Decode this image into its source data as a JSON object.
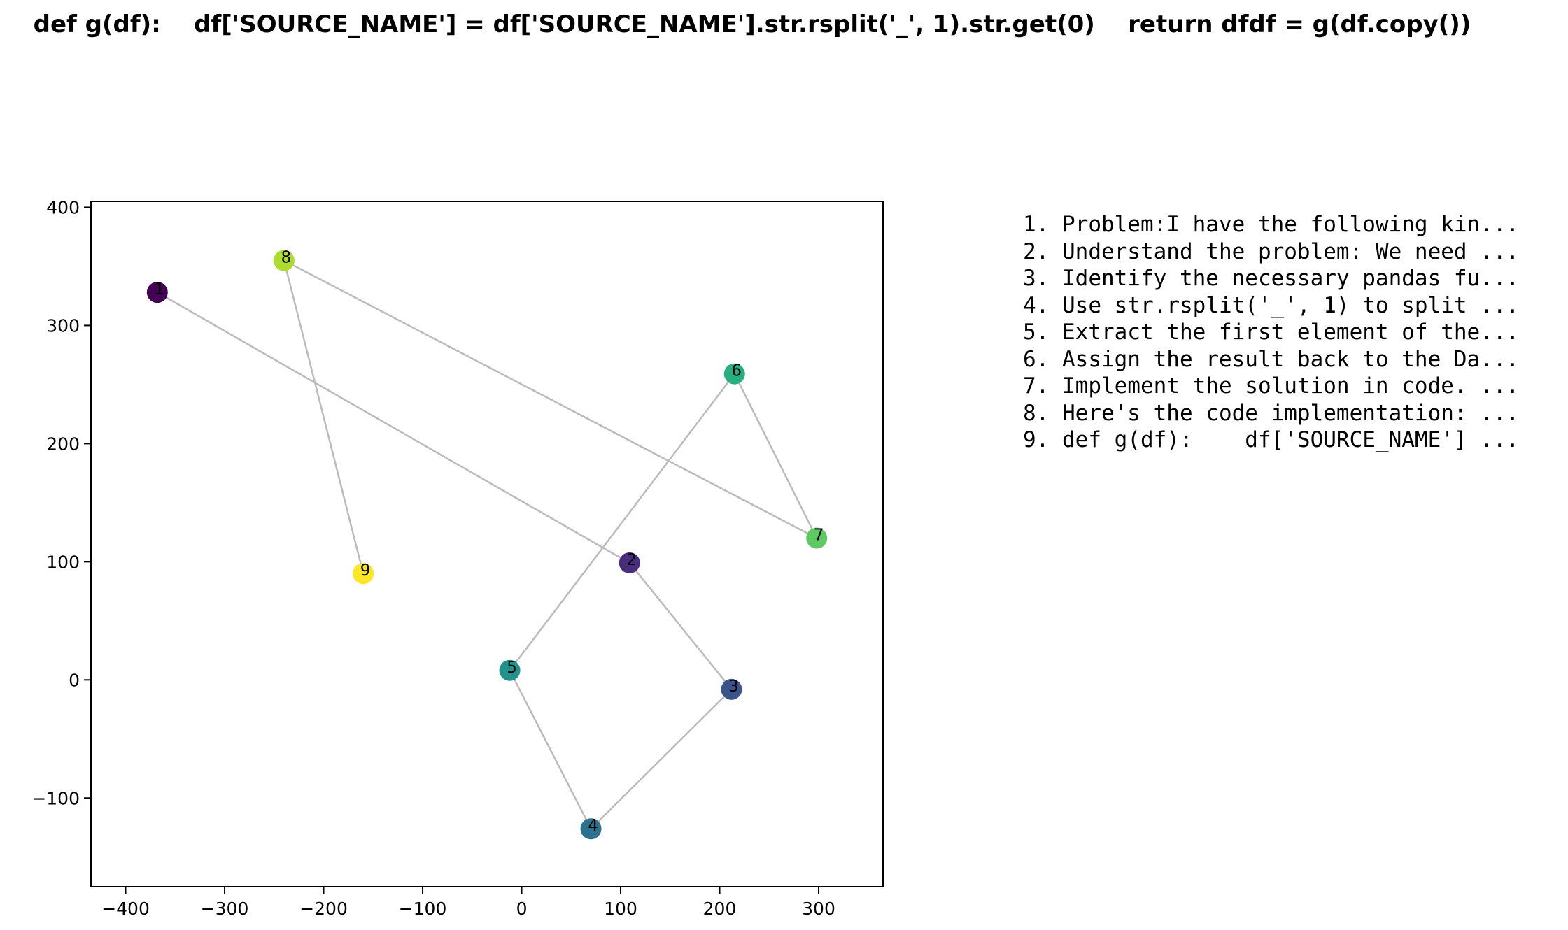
{
  "chart_data": {
    "type": "scatter",
    "title": "def g(df):    df['SOURCE_NAME'] = df['SOURCE_NAME'].str.rsplit('_', 1).str.get(0)    return dfdf = g(df.copy())",
    "xlabel": "",
    "ylabel": "",
    "xlim": [
      -435,
      365
    ],
    "ylim": [
      -175,
      405
    ],
    "x_ticks": [
      -400,
      -300,
      -200,
      -100,
      0,
      100,
      200,
      300
    ],
    "y_ticks": [
      -100,
      0,
      100,
      200,
      300,
      400
    ],
    "x_tick_labels": [
      "−400",
      "−300",
      "−200",
      "−100",
      "0",
      "100",
      "200",
      "300"
    ],
    "y_tick_labels": [
      "−100",
      "0",
      "100",
      "200",
      "300",
      "400"
    ],
    "grid": false,
    "colormap": "viridis",
    "line_color": "#bbbbbb",
    "points": [
      {
        "label": "1",
        "x": -368,
        "y": 328,
        "color": "#440154"
      },
      {
        "label": "2",
        "x": 109,
        "y": 99,
        "color": "#472d7b"
      },
      {
        "label": "3",
        "x": 212,
        "y": -8,
        "color": "#3b528b"
      },
      {
        "label": "4",
        "x": 70,
        "y": -126,
        "color": "#2c728e"
      },
      {
        "label": "5",
        "x": -12,
        "y": 8,
        "color": "#21918c"
      },
      {
        "label": "6",
        "x": 215,
        "y": 259,
        "color": "#28ae80"
      },
      {
        "label": "7",
        "x": 298,
        "y": 120,
        "color": "#5ec962"
      },
      {
        "label": "8",
        "x": -240,
        "y": 355,
        "color": "#addc30"
      },
      {
        "label": "9",
        "x": -160,
        "y": 90,
        "color": "#fde725"
      }
    ],
    "steps": [
      "1. Problem:I have the following kin...",
      "2. Understand the problem: We need ...",
      "3. Identify the necessary pandas fu...",
      "4. Use str.rsplit('_', 1) to split ...",
      "5. Extract the first element of the...",
      "6. Assign the result back to the Da...",
      "7. Implement the solution in code. ...",
      "8. Here's the code implementation: ...",
      "9. def g(df):    df['SOURCE_NAME'] ..."
    ]
  }
}
